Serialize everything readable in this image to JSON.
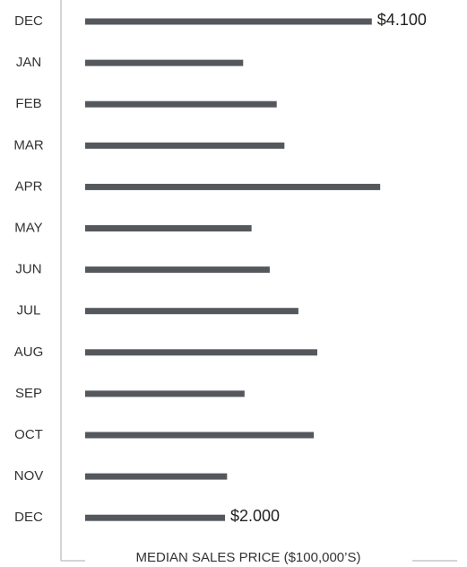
{
  "chart_data": {
    "type": "bar",
    "orientation": "horizontal",
    "xlabel": "MEDIAN SALES PRICE ($100,000’S)",
    "categories": [
      "DEC",
      "JAN",
      "FEB",
      "MAR",
      "APR",
      "MAY",
      "JUN",
      "JUL",
      "AUG",
      "SEP",
      "OCT",
      "NOV",
      "DEC"
    ],
    "values": [
      4.1,
      2.26,
      2.74,
      2.85,
      4.22,
      2.38,
      2.64,
      3.05,
      3.32,
      2.28,
      3.27,
      2.03,
      2.0
    ],
    "value_labels": [
      "$4.100",
      null,
      null,
      null,
      null,
      null,
      null,
      null,
      null,
      null,
      null,
      null,
      "$2.000"
    ],
    "color": "#54585c"
  }
}
